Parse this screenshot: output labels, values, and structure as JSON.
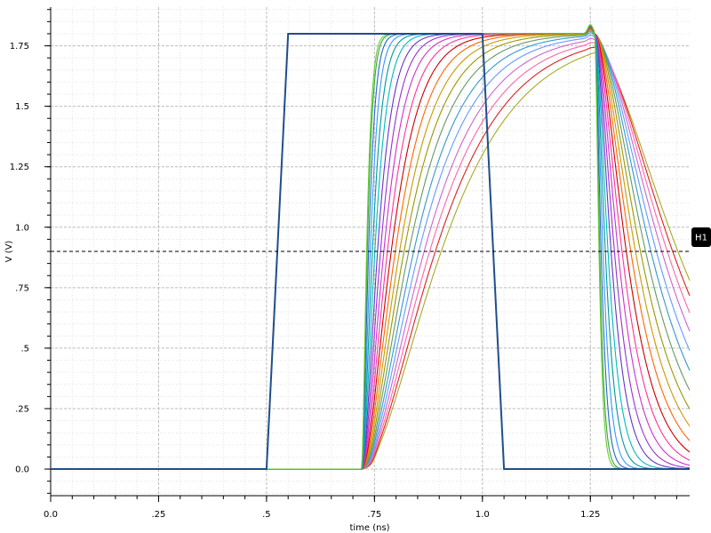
{
  "chart_data": {
    "type": "line",
    "xlabel": "time (ns)",
    "ylabel": "V (V)",
    "xlim": [
      0.0,
      1.48
    ],
    "ylim": [
      -0.11,
      1.91
    ],
    "x_ticks": [
      {
        "value": 0.0,
        "label": "0.0"
      },
      {
        "value": 0.25,
        "label": ".25"
      },
      {
        "value": 0.5,
        "label": ".5"
      },
      {
        "value": 0.75,
        "label": ".75"
      },
      {
        "value": 1.0,
        "label": "1.0"
      },
      {
        "value": 1.25,
        "label": "1.25"
      }
    ],
    "y_ticks": [
      {
        "value": 0.0,
        "label": "0.0"
      },
      {
        "value": 0.25,
        "label": ".25"
      },
      {
        "value": 0.5,
        "label": ".5"
      },
      {
        "value": 0.75,
        "label": ".75"
      },
      {
        "value": 1.0,
        "label": "1.0"
      },
      {
        "value": 1.25,
        "label": "1.25"
      },
      {
        "value": 1.5,
        "label": "1.5"
      },
      {
        "value": 1.75,
        "label": "1.75"
      }
    ],
    "x_minor_step": 0.05,
    "y_minor_step": 0.05,
    "grid": true,
    "input_pulse": {
      "color": "#1f4e8c",
      "x": [
        0.0,
        0.5,
        0.55,
        1.0,
        1.05,
        1.48
      ],
      "y": [
        0.0,
        0.0,
        1.8,
        1.8,
        0.0,
        0.0
      ]
    },
    "sweep": {
      "vdd": 1.8,
      "rise_start": 0.72,
      "fall_start": 1.26,
      "rise_tau_min": 0.007,
      "rise_tau_max": 0.11,
      "fall_tau_min": 0.006,
      "fall_tau_max": 0.12,
      "count": 21,
      "colors": [
        "#66cc33",
        "#33aa33",
        "#2266cc",
        "#3399ff",
        "#009999",
        "#00bbbb",
        "#6633cc",
        "#9933cc",
        "#cc33cc",
        "#ff3399",
        "#cc0000",
        "#ff6600",
        "#cc9900",
        "#999900",
        "#669966",
        "#3399cc",
        "#6699ff",
        "#cc66cc",
        "#ff66aa",
        "#dd2222",
        "#aaaa22"
      ]
    },
    "marker": {
      "label": "H1",
      "y": 0.9
    }
  }
}
